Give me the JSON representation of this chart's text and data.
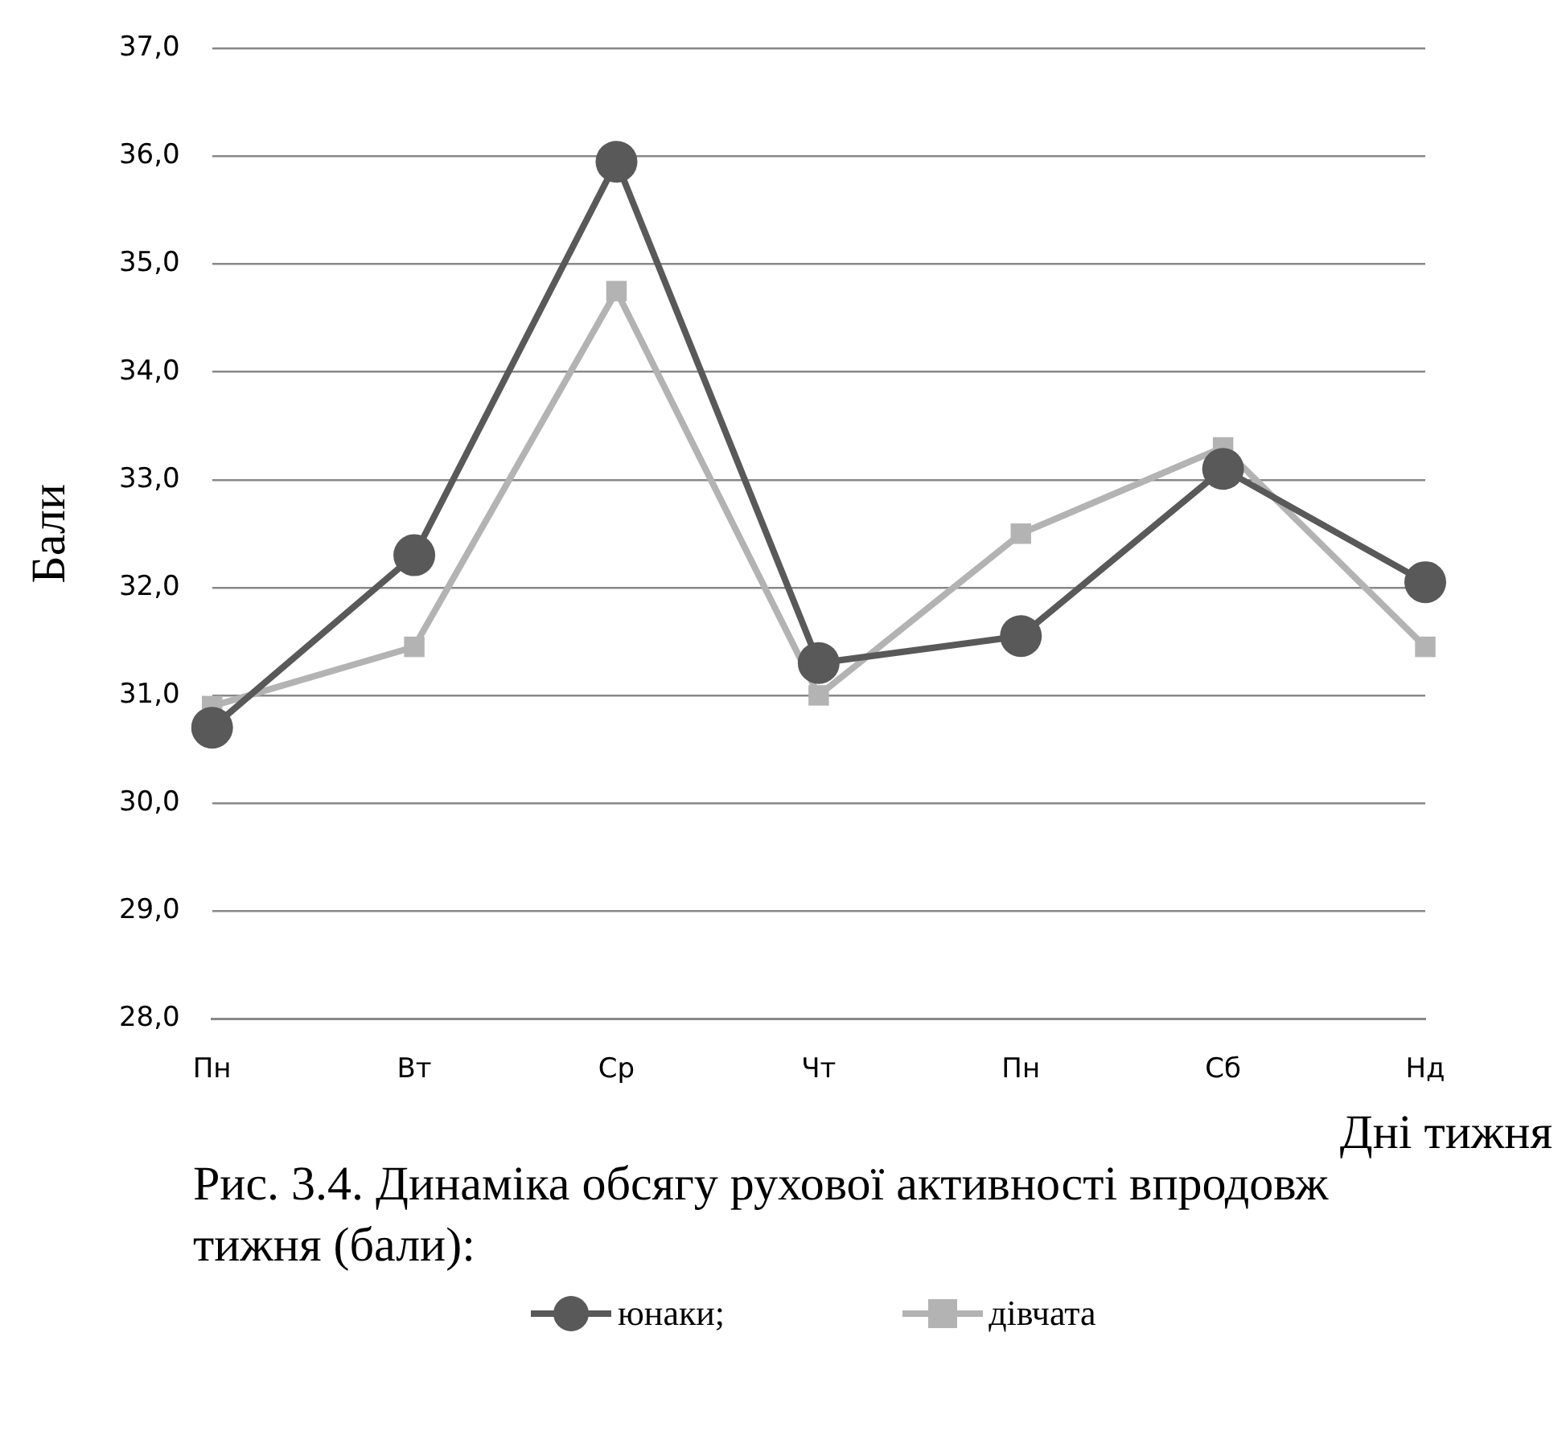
{
  "chart_data": {
    "type": "line",
    "xlabel": "Дні тижня",
    "ylabel": "Бали",
    "categories": [
      "Пн",
      "Вт",
      "Ср",
      "Чт",
      "Пн",
      "Сб",
      "Нд"
    ],
    "series": [
      {
        "name": "юнаки;",
        "color": "#595959",
        "marker": "circle",
        "values": [
          30.7,
          32.3,
          35.95,
          31.3,
          31.55,
          33.1,
          32.05
        ]
      },
      {
        "name": "дівчата",
        "color": "#b3b3b3",
        "marker": "square",
        "values": [
          30.9,
          31.45,
          34.75,
          31.0,
          32.5,
          33.3,
          31.45
        ]
      }
    ],
    "ylim": [
      28,
      37
    ],
    "yticks": [
      {
        "value": 28,
        "label": "28,0"
      },
      {
        "value": 29,
        "label": "29,0"
      },
      {
        "value": 30,
        "label": "30,0"
      },
      {
        "value": 31,
        "label": "31,0"
      },
      {
        "value": 32,
        "label": "32,0"
      },
      {
        "value": 33,
        "label": "33,0"
      },
      {
        "value": 34,
        "label": "34,0"
      },
      {
        "value": 35,
        "label": "35,0"
      },
      {
        "value": 36,
        "label": "36,0"
      },
      {
        "value": 37,
        "label": "37,0"
      }
    ],
    "grid": "y",
    "legend": "bottom",
    "line_style": "solid",
    "annotations": [
      "Рис. 3.4. Динаміка обсягу рухової активності впродовж тижня (бали):"
    ]
  }
}
